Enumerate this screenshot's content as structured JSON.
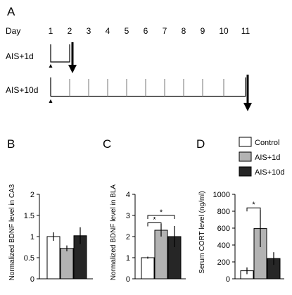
{
  "colors": {
    "control": "#ffffff",
    "ais_1d": "#b3b3b3",
    "ais_10d": "#262626",
    "stroke": "#000000",
    "timeline_tick": "#8c8c8c"
  },
  "panel_a": {
    "letter": "A",
    "day_label": "Day",
    "days": [
      "1",
      "2",
      "3",
      "4",
      "5",
      "6",
      "7",
      "8",
      "9",
      "10",
      "11"
    ],
    "group1_label": "AIS+1d",
    "group2_label": "AIS+10d",
    "group1_stress_days": [
      1,
      2
    ],
    "group1_sample_day": 2,
    "group2_stress_days": [
      1,
      11
    ],
    "group2_sample_day": 11
  },
  "legend": [
    "Control",
    "AIS+1d",
    "AIS+10d"
  ],
  "chart_data": [
    {
      "panel": "B",
      "type": "bar",
      "categories": [
        "Control",
        "AIS+1d",
        "AIS+10d"
      ],
      "values": [
        1.0,
        0.72,
        1.02
      ],
      "errors": [
        0.1,
        0.07,
        0.2
      ],
      "ylabel": "Normalized BDNF level in CA3",
      "ylim": [
        0,
        2
      ],
      "yticks": [
        "0",
        "0.5",
        "1",
        "1.5",
        "2"
      ],
      "significance": []
    },
    {
      "panel": "C",
      "type": "bar",
      "categories": [
        "Control",
        "AIS+1d",
        "AIS+10d"
      ],
      "values": [
        1.0,
        2.3,
        2.0
      ],
      "errors": [
        0.05,
        0.3,
        0.5
      ],
      "ylabel": "Normalized BDNF level in BLA",
      "ylim": [
        0,
        4
      ],
      "yticks": [
        "0",
        "1",
        "2",
        "3",
        "4"
      ],
      "significance": [
        {
          "from": 0,
          "to": 1,
          "y": 2.65,
          "label": "*"
        },
        {
          "from": 0,
          "to": 2,
          "y": 3.0,
          "label": "*"
        }
      ]
    },
    {
      "panel": "D",
      "type": "bar",
      "categories": [
        "Control",
        "AIS+1d",
        "AIS+10d"
      ],
      "values": [
        95,
        595,
        240
      ],
      "errors": [
        40,
        220,
        75
      ],
      "ylabel": "Serum CORT level (ng/ml)",
      "ylim": [
        0,
        1000
      ],
      "yticks": [
        "0",
        "200",
        "400",
        "600",
        "800",
        "1000"
      ],
      "significance": [
        {
          "from": 0,
          "to": 1,
          "y": 840,
          "label": "*"
        }
      ]
    }
  ]
}
